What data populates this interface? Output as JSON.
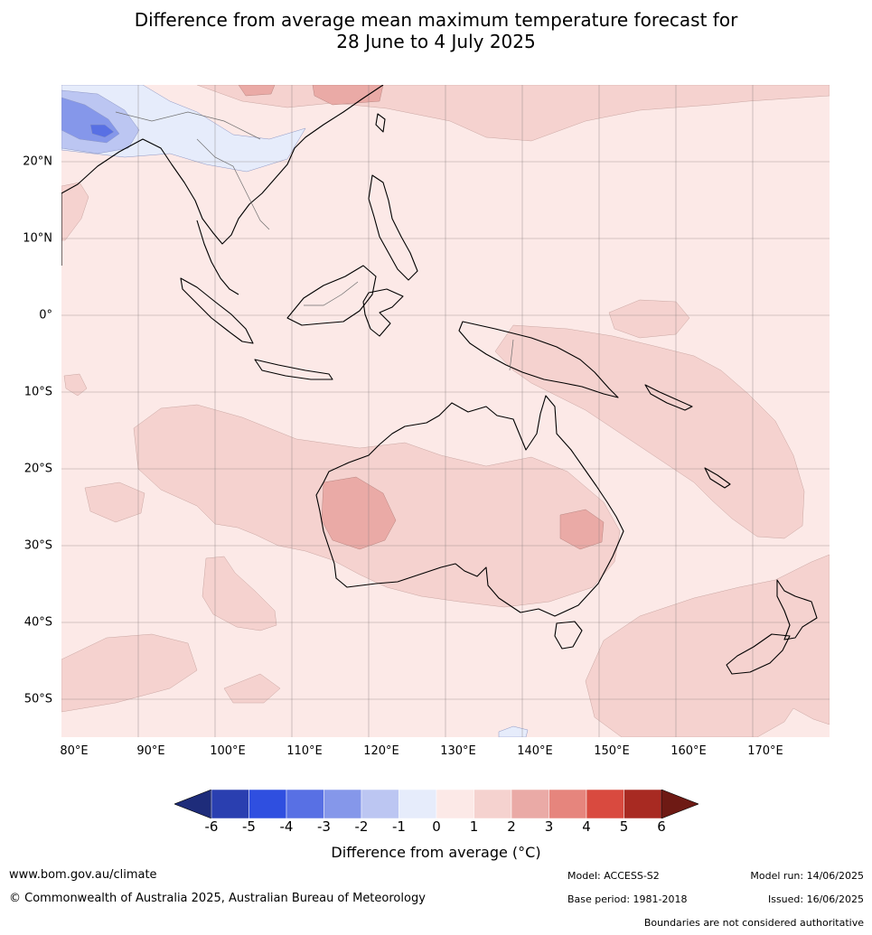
{
  "title": {
    "line1": "Difference from average mean maximum temperature forecast for",
    "line2": "28 June to 4 July 2025"
  },
  "map": {
    "extent": {
      "lon": [
        80,
        180
      ],
      "lat": [
        -55,
        30
      ]
    },
    "lat_ticks": [
      {
        "value": 20,
        "label": "20°N"
      },
      {
        "value": 10,
        "label": "10°N"
      },
      {
        "value": 0,
        "label": "0°"
      },
      {
        "value": -10,
        "label": "10°S"
      },
      {
        "value": -20,
        "label": "20°S"
      },
      {
        "value": -30,
        "label": "30°S"
      },
      {
        "value": -40,
        "label": "40°S"
      },
      {
        "value": -50,
        "label": "50°S"
      }
    ],
    "lon_ticks": [
      {
        "value": 80,
        "label": "80°E"
      },
      {
        "value": 90,
        "label": "90°E"
      },
      {
        "value": 100,
        "label": "100°E"
      },
      {
        "value": 110,
        "label": "110°E"
      },
      {
        "value": 120,
        "label": "120°E"
      },
      {
        "value": 130,
        "label": "130°E"
      },
      {
        "value": 140,
        "label": "140°E"
      },
      {
        "value": 150,
        "label": "150°E"
      },
      {
        "value": 160,
        "label": "160°E"
      },
      {
        "value": 170,
        "label": "170°E"
      }
    ],
    "gridlines": true,
    "background_color": "#fce9e7"
  },
  "colorbar": {
    "ticks": [
      "-6",
      "-5",
      "-4",
      "-3",
      "-2",
      "-1",
      "0",
      "1",
      "2",
      "3",
      "4",
      "5",
      "6"
    ],
    "colors": [
      "#1e2c7a",
      "#2a3fb0",
      "#2f4fe0",
      "#5870e4",
      "#8597ea",
      "#bcc6f2",
      "#e6ecfb",
      "#fce9e7",
      "#f5d2cf",
      "#eaaaa6",
      "#e6857d",
      "#d94a3f",
      "#a82a22",
      "#6e1a14"
    ],
    "label": "Difference from average (°C)"
  },
  "footer": {
    "website": "www.bom.gov.au/climate",
    "copyright": "© Commonwealth of Australia 2025, Australian Bureau of Meteorology",
    "model": "Model: ACCESS-S2",
    "base_period": "Base period: 1981-2018",
    "model_run": "Model run: 14/06/2025",
    "issued": "Issued: 16/06/2025",
    "disclaimer": "Boundaries are not considered authoritative"
  }
}
